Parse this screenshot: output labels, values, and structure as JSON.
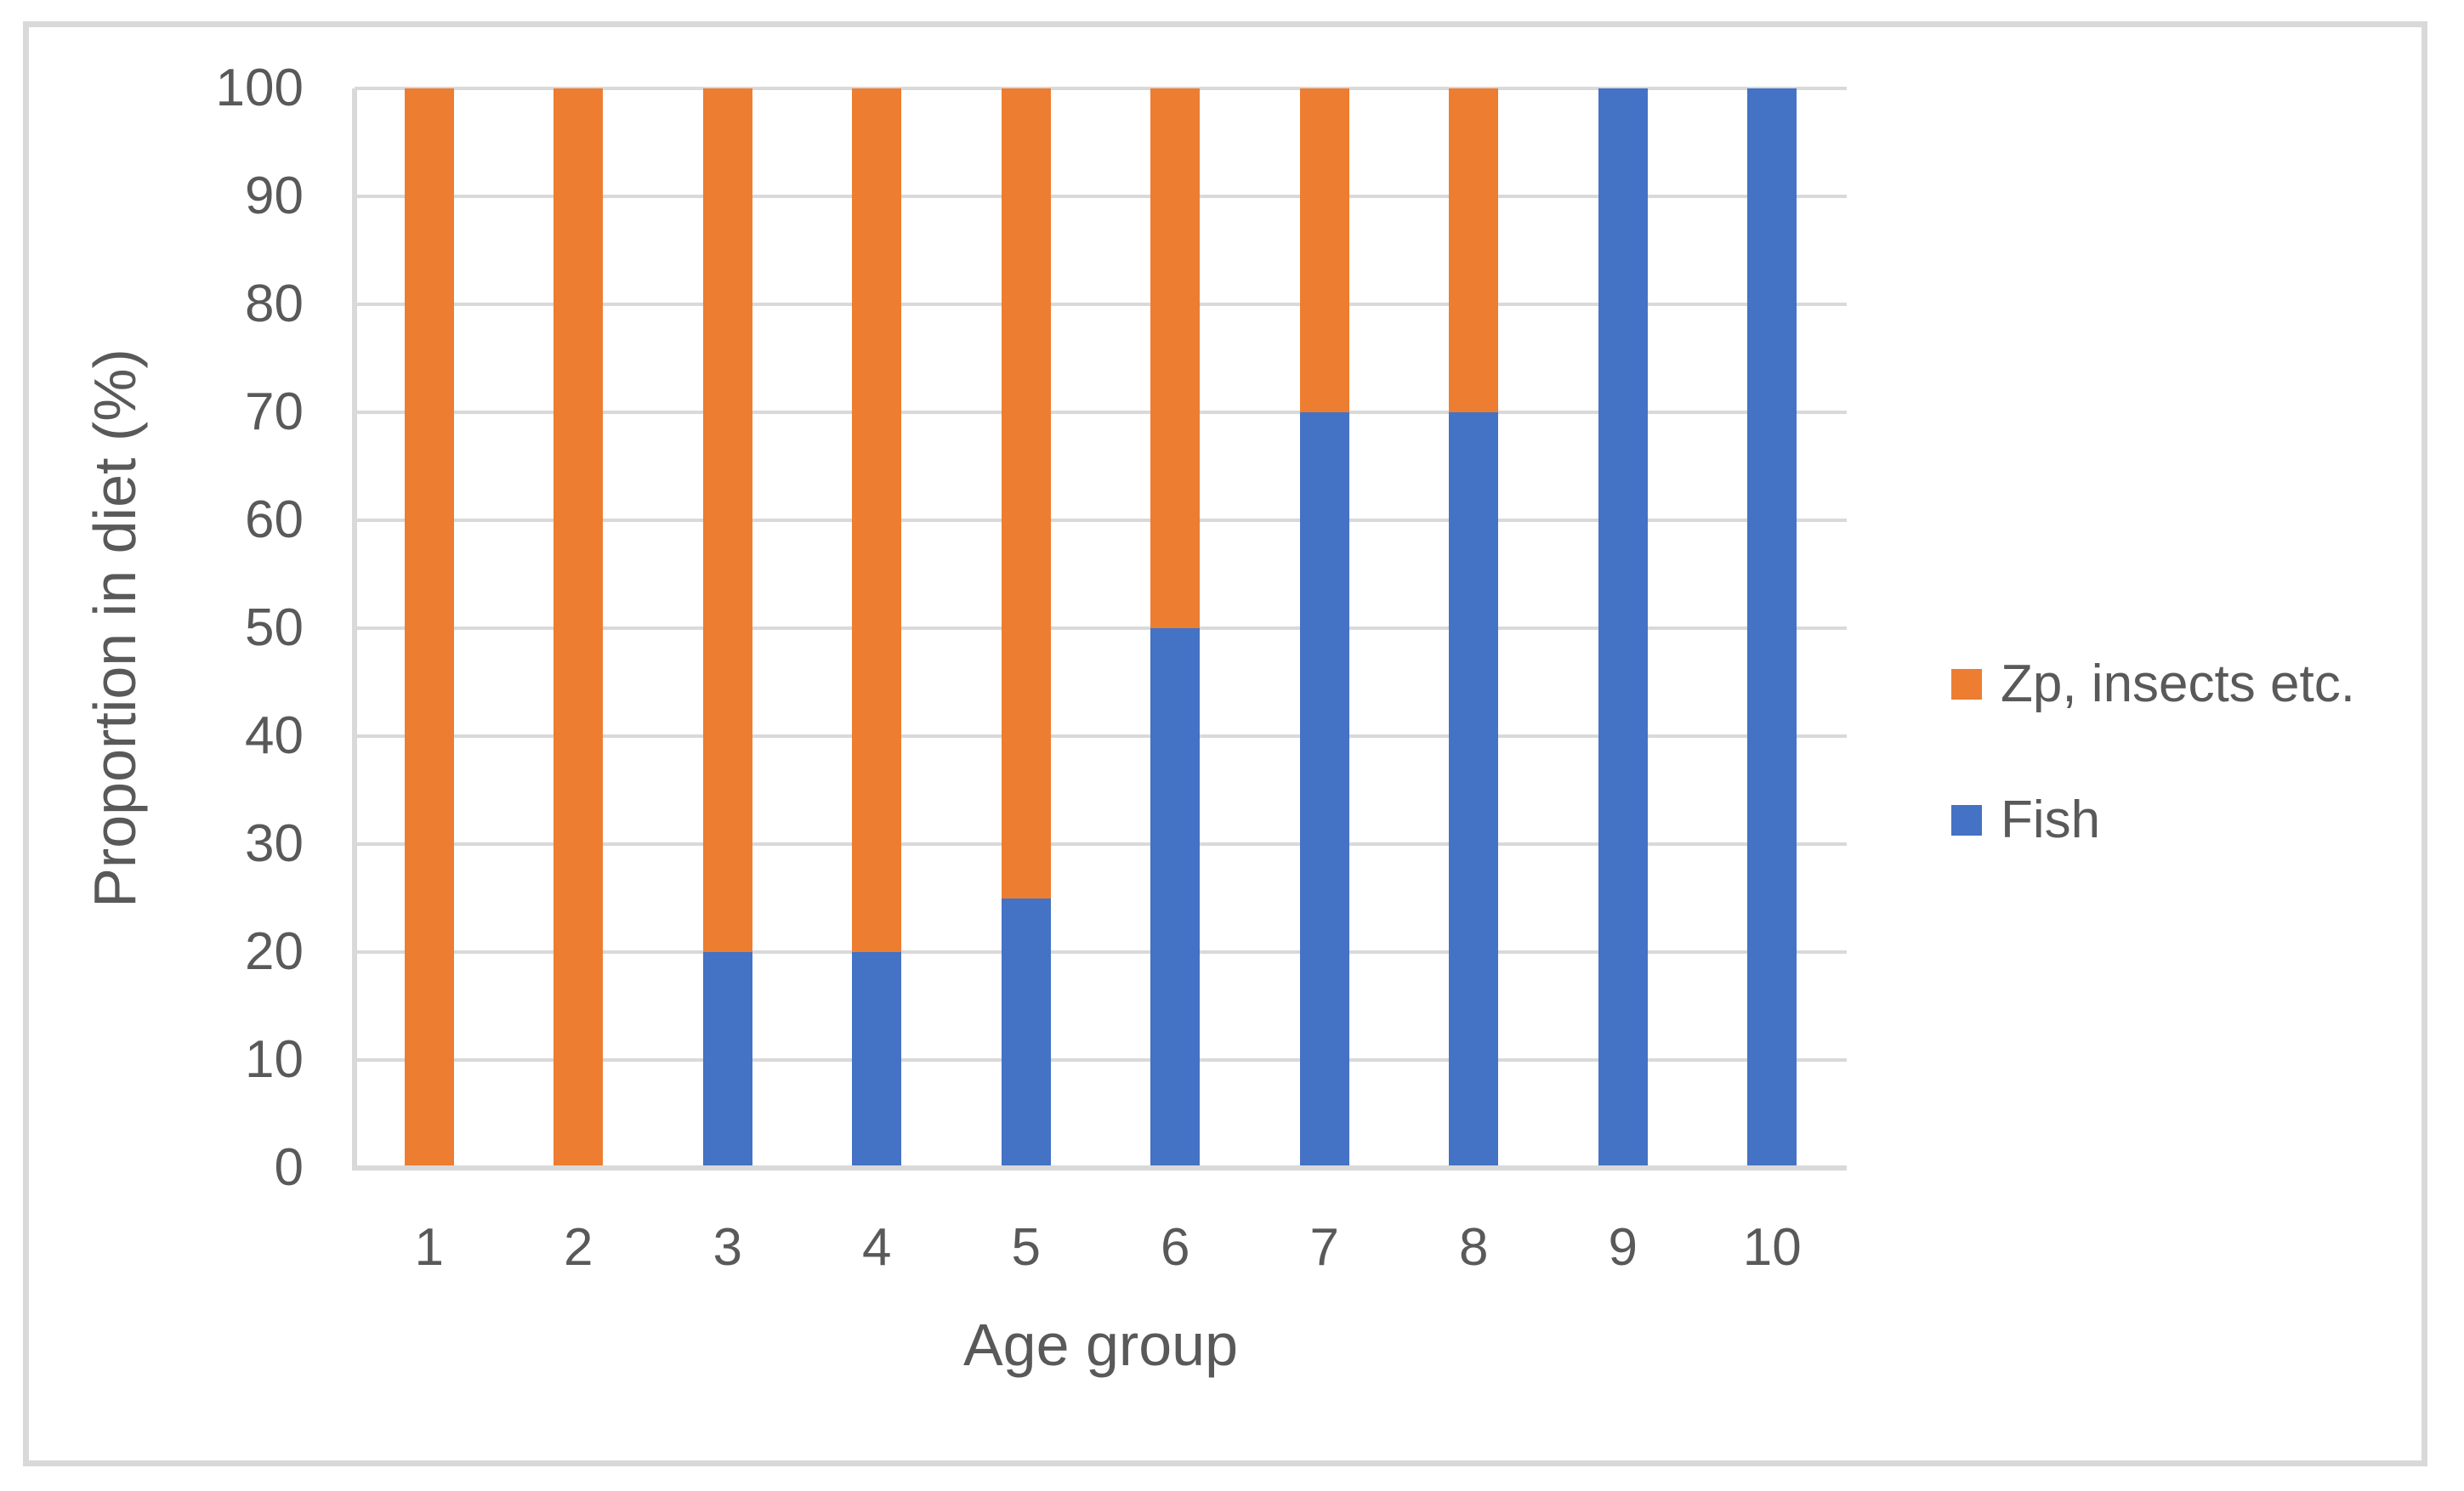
{
  "chart_data": {
    "type": "bar",
    "stacked": true,
    "title": "",
    "xlabel": "Age group",
    "ylabel": "Proportion in diet (%)",
    "categories": [
      "1",
      "2",
      "3",
      "4",
      "5",
      "6",
      "7",
      "8",
      "9",
      "10"
    ],
    "series": [
      {
        "name": "Fish",
        "color": "#4472C4",
        "values": [
          0,
          0,
          20,
          20,
          25,
          50,
          70,
          70,
          100,
          100
        ]
      },
      {
        "name": "Zp, insects etc.",
        "color": "#ED7D31",
        "values": [
          100,
          100,
          80,
          80,
          75,
          50,
          30,
          30,
          0,
          0
        ]
      }
    ],
    "legend_items": [
      {
        "label": "Zp, insects etc.",
        "color": "#ED7D31"
      },
      {
        "label": "Fish",
        "color": "#4472C4"
      }
    ],
    "legend_position": "right",
    "ylim": [
      0,
      100
    ],
    "yticks": [
      0,
      10,
      20,
      30,
      40,
      50,
      60,
      70,
      80,
      90,
      100
    ],
    "grid": true
  },
  "colors": {
    "grid": "#D9D9D9",
    "axis": "#D9D9D9",
    "text": "#595959",
    "frame_border": "#D9D9D9",
    "background": "#FFFFFF"
  }
}
